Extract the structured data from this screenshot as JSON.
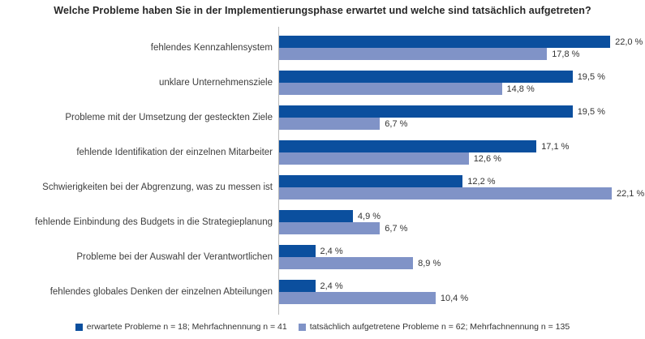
{
  "title": "Welche Probleme haben Sie in der Implementierungsphase erwartet und welche sind tatsächlich aufgetreten?",
  "colors": {
    "expected": "#0b4f9e",
    "actual": "#8093c7",
    "axis": "#b9b9b9",
    "text": "#3d3d3d"
  },
  "chart_data": {
    "type": "bar",
    "orientation": "horizontal",
    "title": "Welche Probleme haben Sie in der Implementierungsphase erwartet und welche sind tatsächlich aufgetreten?",
    "xlabel": "",
    "ylabel": "",
    "xlim": [
      0,
      24.2
    ],
    "grid": false,
    "legend_position": "bottom",
    "value_suffix": " %",
    "categories": [
      "fehlendes Kennzahlensystem",
      "unklare Unternehmensziele",
      "Probleme mit der Umsetzung der gesteckten Ziele",
      "fehlende Identifikation der einzelnen Mitarbeiter",
      "Schwierigkeiten bei der Abgrenzung, was zu messen ist",
      "fehlende Einbindung des Budgets in die Strategieplanung",
      "Probleme bei der Auswahl der Verantwortlichen",
      "fehlendes globales Denken der einzelnen Abteilungen"
    ],
    "series": [
      {
        "name": "erwartete Probleme n = 18; Mehrfachnennung n = 41",
        "values": [
          22.0,
          19.5,
          19.5,
          17.1,
          12.2,
          4.9,
          2.4,
          2.4
        ],
        "labels": [
          "22,0 %",
          "19,5 %",
          "19,5 %",
          "17,1 %",
          "12,2 %",
          "4,9 %",
          "2,4 %",
          "2,4 %"
        ]
      },
      {
        "name": "tatsächlich aufgetretene Probleme n = 62; Mehrfachnennung n = 135",
        "values": [
          17.8,
          14.8,
          6.7,
          12.6,
          22.1,
          6.7,
          8.9,
          10.4
        ],
        "labels": [
          "17,8 %",
          "14,8 %",
          "6,7 %",
          "12,6 %",
          "22,1 %",
          "6,7 %",
          "8,9 %",
          "10,4 %"
        ]
      }
    ]
  },
  "legend": {
    "expected_label": "erwartete Probleme n = 18; Mehrfachnennung n = 41",
    "actual_label": "tatsächlich aufgetretene Probleme n = 62; Mehrfachnennung n = 135"
  }
}
